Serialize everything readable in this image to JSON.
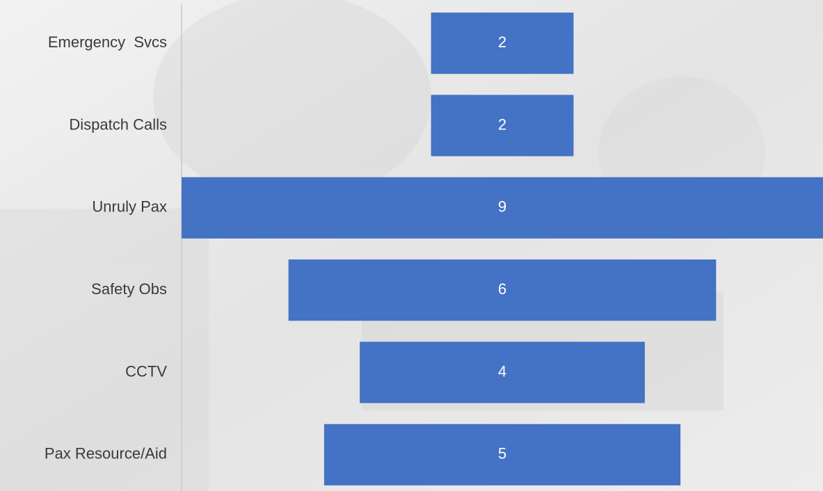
{
  "chart_data": {
    "type": "funnel",
    "categories": [
      "Emergency  Svcs",
      "Dispatch Calls",
      "Unruly Pax",
      "Safety Obs",
      "CCTV",
      "Pax Resource/Aid"
    ],
    "values": [
      2,
      2,
      9,
      6,
      4,
      5
    ],
    "color": "#4472c4"
  }
}
